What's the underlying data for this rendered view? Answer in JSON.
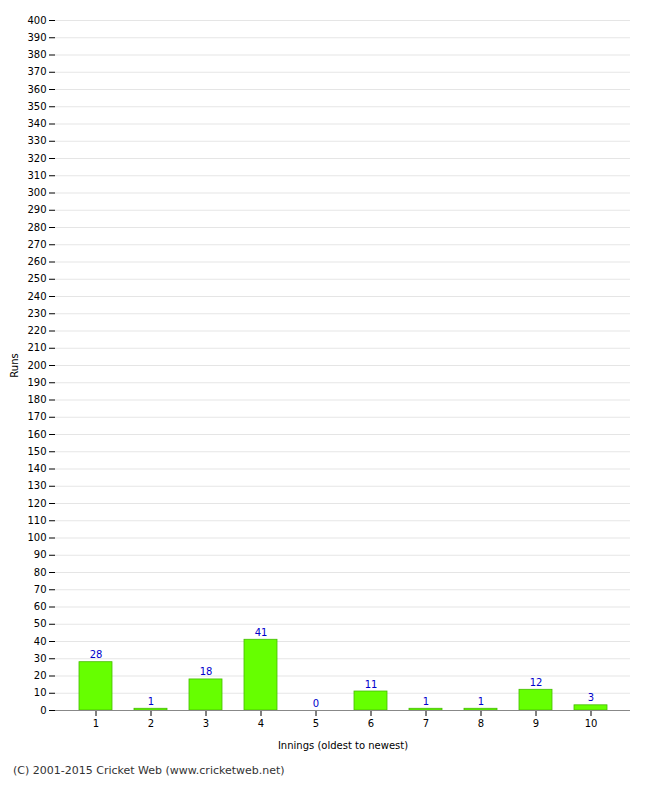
{
  "chart_data": {
    "type": "bar",
    "caption": "(C) 2001-2015 Cricket Web (www.cricketweb.net)",
    "xlabel": "Innings (oldest to newest)",
    "ylabel": "Runs",
    "categories": [
      "1",
      "2",
      "3",
      "4",
      "5",
      "6",
      "7",
      "8",
      "9",
      "10"
    ],
    "values": [
      28,
      1,
      18,
      41,
      0,
      11,
      1,
      1,
      12,
      3
    ],
    "color": "#66ff00",
    "ylim": [
      0,
      400
    ],
    "yticks": [
      0,
      10,
      20,
      30,
      40,
      50,
      60,
      70,
      80,
      90,
      100,
      110,
      120,
      130,
      140,
      150,
      160,
      170,
      180,
      190,
      200,
      210,
      220,
      230,
      240,
      250,
      260,
      270,
      280,
      290,
      300,
      310,
      320,
      330,
      340,
      350,
      360,
      370,
      380,
      390,
      400
    ],
    "grid": true,
    "data_labels": true
  }
}
